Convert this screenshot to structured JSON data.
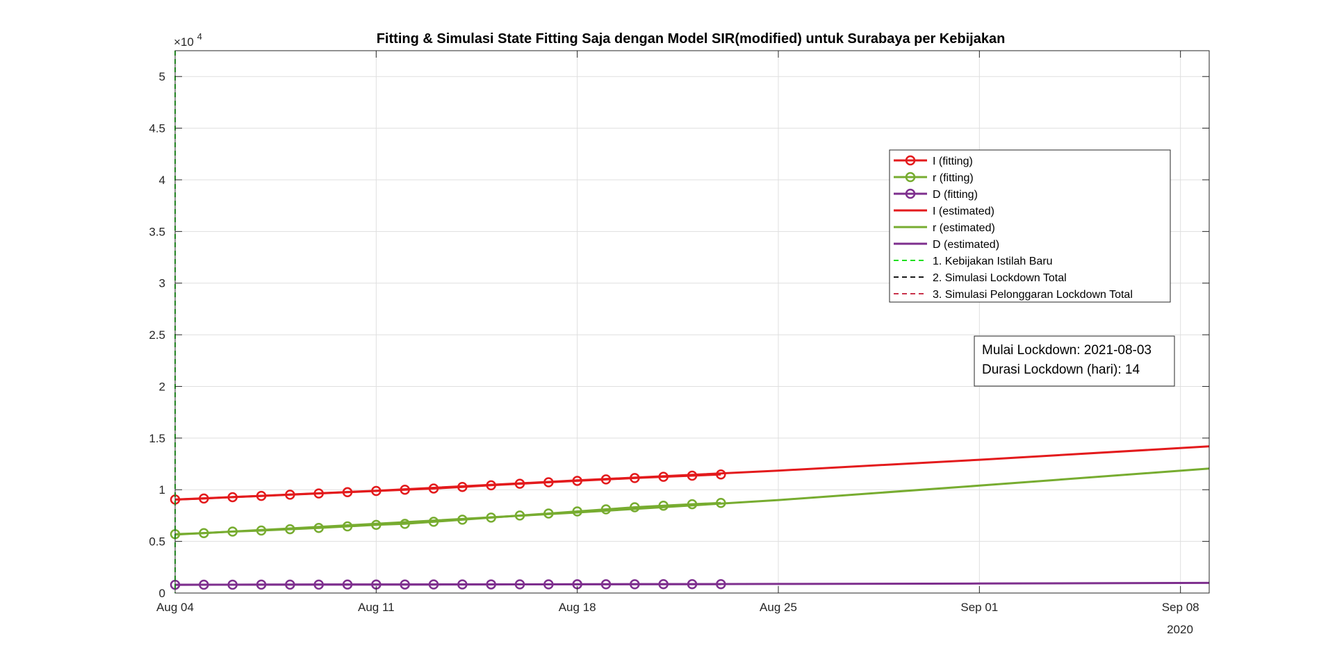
{
  "chart_data": {
    "type": "line",
    "title": "Fitting & Simulasi State Fitting Saja dengan Model SIR(modified) untuk Surabaya per Kebijakan",
    "xlabel": "",
    "ylabel": "",
    "y_exponent_base": "×10",
    "y_exponent_power": "4",
    "x_year_label": "2020",
    "xlim": [
      "2020-08-04",
      "2020-09-09"
    ],
    "ylim": [
      0,
      52500
    ],
    "grid": true,
    "legend_position": "top-right",
    "x_ticks": [
      {
        "date": "2020-08-04",
        "label": "Aug 04"
      },
      {
        "date": "2020-08-11",
        "label": "Aug 11"
      },
      {
        "date": "2020-08-18",
        "label": "Aug 18"
      },
      {
        "date": "2020-08-25",
        "label": "Aug 25"
      },
      {
        "date": "2020-09-01",
        "label": "Sep 01"
      },
      {
        "date": "2020-09-08",
        "label": "Sep 08"
      }
    ],
    "y_ticks": [
      {
        "value": 0,
        "label": "0"
      },
      {
        "value": 5000,
        "label": "0.5"
      },
      {
        "value": 10000,
        "label": "1"
      },
      {
        "value": 15000,
        "label": "1.5"
      },
      {
        "value": 20000,
        "label": "2"
      },
      {
        "value": 25000,
        "label": "2.5"
      },
      {
        "value": 30000,
        "label": "3"
      },
      {
        "value": 35000,
        "label": "3.5"
      },
      {
        "value": 40000,
        "label": "4"
      },
      {
        "value": 45000,
        "label": "4.5"
      },
      {
        "value": 50000,
        "label": "5"
      }
    ],
    "fitting_dates": [
      "2020-08-04",
      "2020-08-05",
      "2020-08-06",
      "2020-08-07",
      "2020-08-08",
      "2020-08-09",
      "2020-08-10",
      "2020-08-11",
      "2020-08-12",
      "2020-08-13",
      "2020-08-14",
      "2020-08-15",
      "2020-08-16",
      "2020-08-17",
      "2020-08-18",
      "2020-08-19",
      "2020-08-20",
      "2020-08-21",
      "2020-08-22",
      "2020-08-23"
    ],
    "series": [
      {
        "name": "I (fitting)",
        "color": "#e31a1c",
        "style": "line-marker",
        "values": [
          9050,
          9150,
          9280,
          9400,
          9520,
          9640,
          9760,
          9880,
          10000,
          10120,
          10270,
          10430,
          10580,
          10720,
          10860,
          11000,
          11130,
          11250,
          11360,
          11480
        ]
      },
      {
        "name": "r (fitting)",
        "color": "#77ac30",
        "style": "line-marker",
        "values": [
          5700,
          5800,
          5950,
          6050,
          6180,
          6300,
          6450,
          6600,
          6700,
          6900,
          7100,
          7300,
          7500,
          7700,
          7900,
          8100,
          8300,
          8450,
          8600,
          8720
        ]
      },
      {
        "name": "D (fitting)",
        "color": "#7e2f8e",
        "style": "line-marker",
        "values": [
          800,
          805,
          808,
          812,
          815,
          818,
          821,
          824,
          827,
          830,
          833,
          836,
          839,
          842,
          845,
          848,
          851,
          854,
          857,
          860
        ]
      },
      {
        "name": "I (estimated)",
        "color": "#e31a1c",
        "style": "line",
        "x": [
          "2020-08-04",
          "2020-08-11",
          "2020-08-18",
          "2020-08-25",
          "2020-09-01",
          "2020-09-09"
        ],
        "values": [
          9050,
          9900,
          10900,
          11850,
          12900,
          14200
        ]
      },
      {
        "name": "r (estimated)",
        "color": "#77ac30",
        "style": "line",
        "x": [
          "2020-08-04",
          "2020-08-11",
          "2020-08-18",
          "2020-08-25",
          "2020-09-01",
          "2020-09-09"
        ],
        "values": [
          5650,
          6700,
          7800,
          9000,
          10400,
          12050
        ]
      },
      {
        "name": "D (estimated)",
        "color": "#7e2f8e",
        "style": "line",
        "x": [
          "2020-08-04",
          "2020-08-11",
          "2020-08-18",
          "2020-08-25",
          "2020-09-01",
          "2020-09-09"
        ],
        "values": [
          800,
          825,
          850,
          880,
          920,
          980
        ]
      }
    ],
    "vlines": [
      {
        "name": "1. Kebijakan Istilah Baru",
        "color": "#1ee01e",
        "x": "2020-08-04",
        "drawn": true
      },
      {
        "name": "2. Simulasi Lockdown Total",
        "color": "#1a1a1a",
        "drawn": false
      },
      {
        "name": "3. Simulasi Pelonggaran Lockdown Total",
        "color": "#c8324b",
        "drawn": false
      }
    ],
    "legend_order": [
      "I (fitting)",
      "r (fitting)",
      "D (fitting)",
      "I (estimated)",
      "r (estimated)",
      "D (estimated)",
      "1. Kebijakan Istilah Baru",
      "2. Simulasi Lockdown Total",
      "3. Simulasi Pelonggaran Lockdown Total"
    ],
    "annotation": {
      "line1": "Mulai Lockdown: 2021-08-03",
      "line2": "Durasi Lockdown (hari): 14"
    }
  }
}
